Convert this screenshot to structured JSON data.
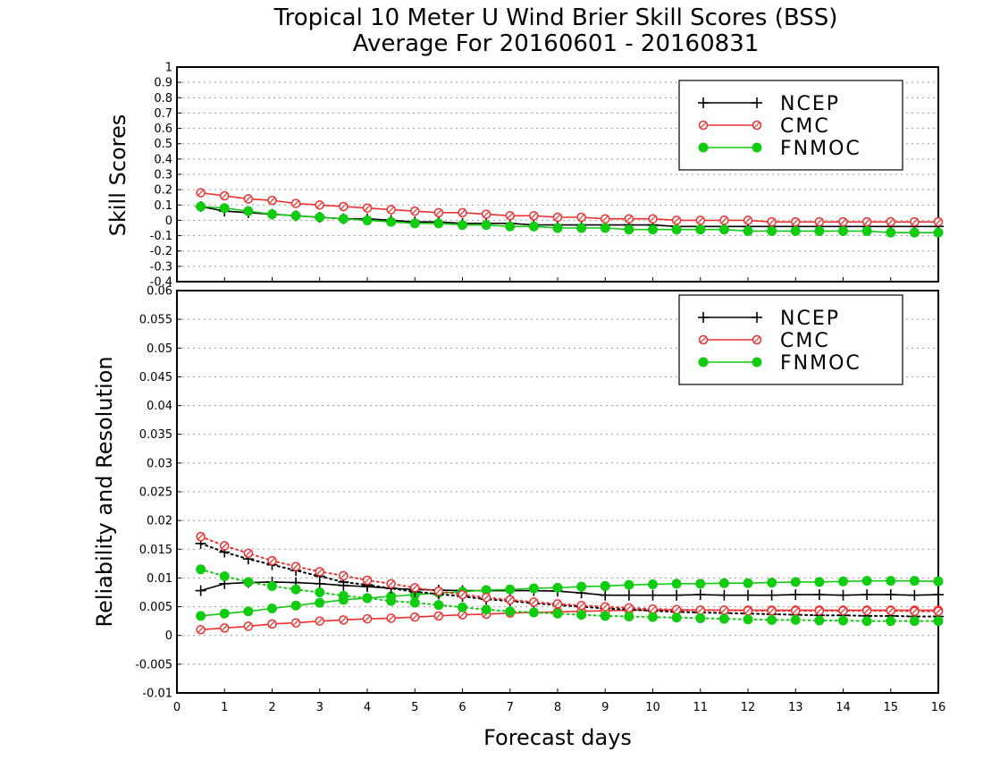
{
  "chart_data": [
    {
      "type": "line",
      "title": "Tropical 10 Meter U Wind Brier Skill Scores (BSS)",
      "subtitle": "Average For 20160601 - 20160831",
      "xlabel": "",
      "ylabel": "Skill Scores",
      "xlim": [
        0,
        16
      ],
      "ylim": [
        -0.4,
        1
      ],
      "yticks": [
        "1",
        "0.9",
        "0.8",
        "0.7",
        "0.6",
        "0.5",
        "0.4",
        "0.3",
        "0.2",
        "0.1",
        "0",
        "-0.1",
        "-0.2",
        "-0.3",
        "-0.4"
      ],
      "grid": true,
      "legend_position": "top-right",
      "x": [
        0.5,
        1,
        1.5,
        2,
        2.5,
        3,
        3.5,
        4,
        4.5,
        5,
        5.5,
        6,
        6.5,
        7,
        7.5,
        8,
        8.5,
        9,
        9.5,
        10,
        10.5,
        11,
        11.5,
        12,
        12.5,
        13,
        13.5,
        14,
        14.5,
        15,
        15.5,
        16
      ],
      "series": [
        {
          "name": "NCEP",
          "color": "#000000",
          "marker": "plus",
          "style": "solid",
          "values": [
            0.09,
            0.06,
            0.05,
            0.04,
            0.03,
            0.02,
            0.01,
            0.01,
            0.0,
            -0.01,
            -0.01,
            -0.02,
            -0.02,
            -0.02,
            -0.03,
            -0.03,
            -0.03,
            -0.03,
            -0.03,
            -0.03,
            -0.04,
            -0.04,
            -0.04,
            -0.04,
            -0.04,
            -0.04,
            -0.04,
            -0.04,
            -0.04,
            -0.04,
            -0.04,
            -0.04
          ]
        },
        {
          "name": "CMC",
          "color": "#ee3030",
          "marker": "open-circle",
          "style": "solid",
          "values": [
            0.18,
            0.16,
            0.14,
            0.13,
            0.11,
            0.1,
            0.09,
            0.08,
            0.07,
            0.06,
            0.05,
            0.05,
            0.04,
            0.03,
            0.03,
            0.02,
            0.02,
            0.01,
            0.01,
            0.01,
            0.0,
            0.0,
            0.0,
            0.0,
            -0.01,
            -0.01,
            -0.01,
            -0.01,
            -0.01,
            -0.01,
            -0.01,
            -0.01
          ]
        },
        {
          "name": "FNMOC",
          "color": "#11cc11",
          "marker": "filled-circle",
          "style": "solid",
          "values": [
            0.09,
            0.08,
            0.06,
            0.04,
            0.03,
            0.02,
            0.01,
            0.0,
            -0.01,
            -0.02,
            -0.02,
            -0.03,
            -0.03,
            -0.04,
            -0.04,
            -0.05,
            -0.05,
            -0.05,
            -0.06,
            -0.06,
            -0.06,
            -0.06,
            -0.06,
            -0.07,
            -0.07,
            -0.07,
            -0.07,
            -0.07,
            -0.07,
            -0.08,
            -0.08,
            -0.08
          ]
        }
      ]
    },
    {
      "type": "line",
      "title": "",
      "xlabel": "Forecast days",
      "ylabel": "Reliability and Resolution",
      "xlim": [
        0,
        16
      ],
      "xticks": [
        "0",
        "1",
        "2",
        "3",
        "4",
        "5",
        "6",
        "7",
        "8",
        "9",
        "10",
        "11",
        "12",
        "13",
        "14",
        "15",
        "16"
      ],
      "ylim": [
        -0.01,
        0.06
      ],
      "yticks": [
        "0.06",
        "0.055",
        "0.05",
        "0.045",
        "0.04",
        "0.035",
        "0.03",
        "0.025",
        "0.02",
        "0.015",
        "0.01",
        "0.005",
        "0",
        "-0.005",
        "-0.01"
      ],
      "grid": true,
      "legend_position": "top-right",
      "x": [
        0.5,
        1,
        1.5,
        2,
        2.5,
        3,
        3.5,
        4,
        4.5,
        5,
        5.5,
        6,
        6.5,
        7,
        7.5,
        8,
        8.5,
        9,
        9.5,
        10,
        10.5,
        11,
        11.5,
        12,
        12.5,
        13,
        13.5,
        14,
        14.5,
        15,
        15.5,
        16
      ],
      "series": [
        {
          "name": "NCEP",
          "color": "#000000",
          "marker": "plus",
          "style": "solid",
          "values": [
            0.0078,
            0.009,
            0.0092,
            0.0093,
            0.0092,
            0.009,
            0.0087,
            0.0085,
            0.0082,
            0.008,
            0.0079,
            0.0078,
            0.0078,
            0.0078,
            0.0078,
            0.0077,
            0.0074,
            0.007,
            0.007,
            0.007,
            0.007,
            0.0071,
            0.007,
            0.007,
            0.007,
            0.0071,
            0.0071,
            0.007,
            0.0071,
            0.0071,
            0.007,
            0.0071
          ]
        },
        {
          "name": "CMC",
          "color": "#ee3030",
          "marker": "open-circle",
          "style": "solid",
          "values": [
            0.001,
            0.0013,
            0.0016,
            0.002,
            0.0022,
            0.0025,
            0.0027,
            0.0029,
            0.003,
            0.0032,
            0.0034,
            0.0036,
            0.0037,
            0.0039,
            0.004,
            0.0041,
            0.0042,
            0.0043,
            0.0044,
            0.0044,
            0.0044,
            0.0044,
            0.0044,
            0.0044,
            0.0044,
            0.0044,
            0.0044,
            0.0044,
            0.0044,
            0.0044,
            0.0044,
            0.0044
          ]
        },
        {
          "name": "FNMOC",
          "color": "#11cc11",
          "marker": "filled-circle",
          "style": "solid",
          "values": [
            0.0034,
            0.0038,
            0.0042,
            0.0047,
            0.0052,
            0.0057,
            0.0062,
            0.0065,
            0.0068,
            0.0071,
            0.0074,
            0.0076,
            0.0079,
            0.008,
            0.0082,
            0.0083,
            0.0085,
            0.0086,
            0.0088,
            0.0089,
            0.009,
            0.009,
            0.0091,
            0.0091,
            0.0092,
            0.0093,
            0.0093,
            0.0094,
            0.0095,
            0.0095,
            0.0095,
            0.0094
          ]
        },
        {
          "name": "",
          "color": "#000000",
          "marker": "plus",
          "style": "dotted",
          "values": [
            0.016,
            0.0145,
            0.0133,
            0.0123,
            0.0113,
            0.0103,
            0.0093,
            0.0088,
            0.0082,
            0.0076,
            0.0072,
            0.0068,
            0.0063,
            0.006,
            0.0056,
            0.0053,
            0.005,
            0.0047,
            0.0045,
            0.0043,
            0.0041,
            0.004,
            0.0039,
            0.0038,
            0.0037,
            0.0036,
            0.0035,
            0.0035,
            0.0034,
            0.0034,
            0.0033,
            0.0033
          ]
        },
        {
          "name": "",
          "color": "#ee3030",
          "marker": "open-circle",
          "style": "dotted",
          "values": [
            0.0172,
            0.0156,
            0.0143,
            0.013,
            0.012,
            0.0111,
            0.0104,
            0.0096,
            0.009,
            0.0083,
            0.0077,
            0.0071,
            0.0066,
            0.0062,
            0.0058,
            0.0055,
            0.0052,
            0.005,
            0.0048,
            0.0046,
            0.0045,
            0.0044,
            0.0044,
            0.0043,
            0.0043,
            0.0043,
            0.0043,
            0.0043,
            0.0043,
            0.0043,
            0.0042,
            0.0042
          ]
        },
        {
          "name": "",
          "color": "#11cc11",
          "marker": "filled-circle",
          "style": "dotted",
          "values": [
            0.0115,
            0.0103,
            0.0093,
            0.0086,
            0.008,
            0.0075,
            0.0069,
            0.0065,
            0.006,
            0.0057,
            0.0053,
            0.0049,
            0.0045,
            0.0042,
            0.004,
            0.0038,
            0.0036,
            0.0034,
            0.0033,
            0.0032,
            0.0031,
            0.003,
            0.0029,
            0.0028,
            0.0027,
            0.0027,
            0.0026,
            0.0026,
            0.0025,
            0.0025,
            0.0025,
            0.0025
          ]
        }
      ]
    }
  ]
}
